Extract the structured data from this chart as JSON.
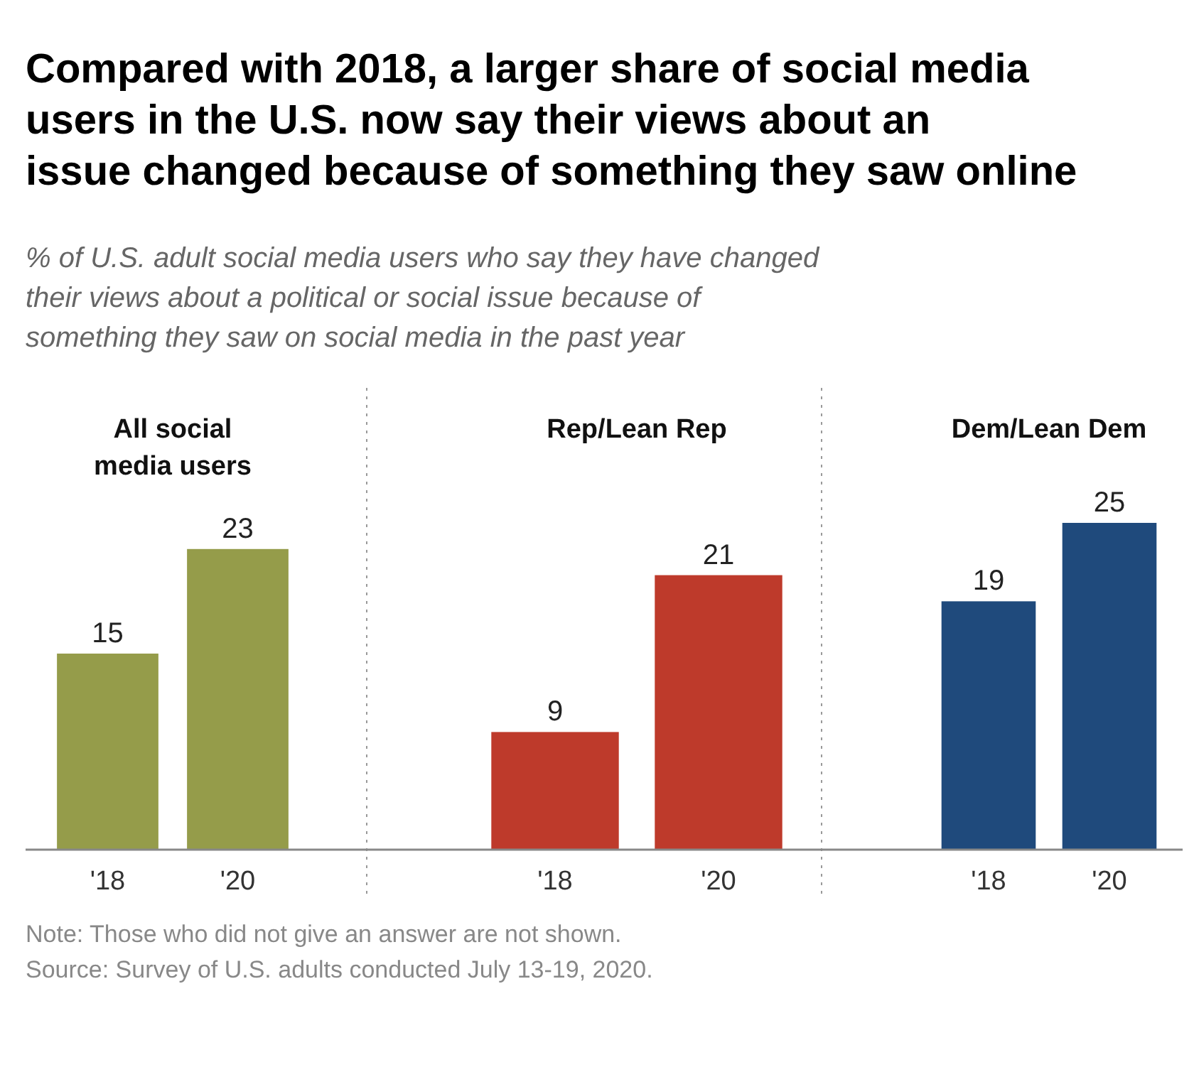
{
  "chart_data": [
    {
      "type": "bar",
      "title": "All social media users",
      "categories": [
        "'18",
        "'20"
      ],
      "values": [
        15,
        23
      ],
      "color": "#959c4a",
      "data_labels": true,
      "annotations": [
        "Compared with 2018, a larger share of social media users in the U.S. now say their views about an issue changed because of something they saw online",
        "% of U.S. adult social media users who say they have changed their views about a political or social issue because of something they saw on social media in the past year",
        "Note: Those who did not give an answer are not shown.",
        "Source: Survey of U.S. adults conducted July 13-19, 2020."
      ]
    },
    {
      "type": "bar",
      "title": "Rep/Lean Rep",
      "categories": [
        "'18",
        "'20"
      ],
      "values": [
        9,
        21
      ],
      "color": "#be3a2b",
      "data_labels": true
    },
    {
      "type": "bar",
      "title": "Dem/Lean Dem",
      "categories": [
        "'18",
        "'20"
      ],
      "values": [
        19,
        25
      ],
      "color": "#1f4a7c",
      "data_labels": true
    }
  ]
}
